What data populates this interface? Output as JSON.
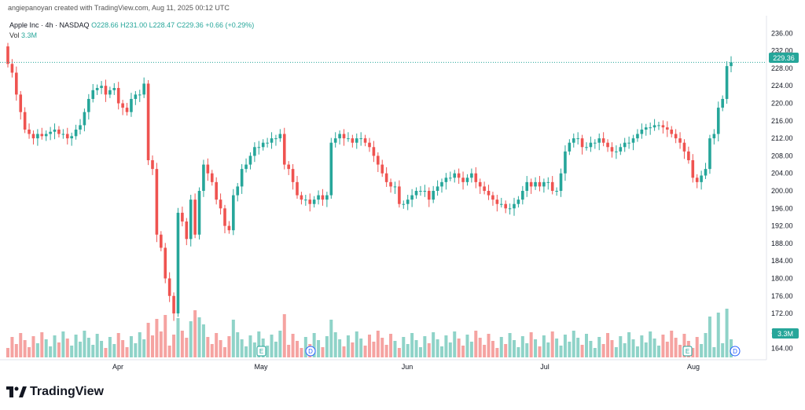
{
  "header": {
    "creator_line": "angiepanoyan created with TradingView.com, Aug 11, 2025 00:12 UTC"
  },
  "legend": {
    "symbol": "Apple Inc · 4h · NASDAQ",
    "open": "O228.66",
    "high": "H231.00",
    "low": "L228.47",
    "close": "C229.36",
    "change": "+0.66 (+0.29%)",
    "vol_label": "Vol",
    "vol_value": "3.3M"
  },
  "price_label": "229.36",
  "vol_badge": "3.3M",
  "logo_text": "TradingView",
  "colors": {
    "up": "#26a69a",
    "down": "#ef5350",
    "up_vol": "#8fd3c8",
    "down_vol": "#f5a3a1"
  },
  "chart_data": {
    "type": "candlestick",
    "symbol": "Apple Inc",
    "interval": "4h",
    "exchange": "NASDAQ",
    "y_ticks": [
      "236.00",
      "232.00",
      "228.00",
      "224.00",
      "220.00",
      "216.00",
      "212.00",
      "208.00",
      "204.00",
      "200.00",
      "196.00",
      "192.00",
      "188.00",
      "184.00",
      "180.00",
      "176.00",
      "172.00",
      "168.00",
      "164.00"
    ],
    "ylim": [
      162.5,
      237.5
    ],
    "x_ticks": [
      "Apr",
      "May",
      "Jun",
      "Jul",
      "Aug"
    ],
    "last_close": 229.36,
    "close_path": [
      [
        0,
        229
      ],
      [
        1,
        227
      ],
      [
        2,
        222
      ],
      [
        3,
        218
      ],
      [
        4,
        214
      ],
      [
        5,
        213
      ],
      [
        6,
        212
      ],
      [
        7,
        213
      ],
      [
        8,
        212.5
      ],
      [
        9,
        213
      ],
      [
        10,
        213.5
      ],
      [
        11,
        214
      ],
      [
        12,
        213
      ],
      [
        13,
        213
      ],
      [
        14,
        212
      ],
      [
        15,
        212.5
      ],
      [
        16,
        214
      ],
      [
        17,
        215
      ],
      [
        18,
        218
      ],
      [
        19,
        221
      ],
      [
        20,
        223
      ],
      [
        21,
        223.5
      ],
      [
        22,
        224
      ],
      [
        23,
        222
      ],
      [
        24,
        223
      ],
      [
        25,
        223.5
      ],
      [
        26,
        220
      ],
      [
        27,
        219
      ],
      [
        28,
        218
      ],
      [
        29,
        221
      ],
      [
        30,
        222
      ],
      [
        31,
        222
      ],
      [
        32,
        224.5
      ],
      [
        33,
        207
      ],
      [
        34,
        205
      ],
      [
        35,
        190
      ],
      [
        36,
        187
      ],
      [
        37,
        180
      ],
      [
        38,
        176
      ],
      [
        39,
        172
      ],
      [
        40,
        195
      ],
      [
        41,
        193
      ],
      [
        42,
        189
      ],
      [
        43,
        198
      ],
      [
        44,
        190
      ],
      [
        45,
        200
      ],
      [
        46,
        206
      ],
      [
        47,
        204
      ],
      [
        48,
        202
      ],
      [
        49,
        198
      ],
      [
        50,
        196
      ],
      [
        51,
        192
      ],
      [
        52,
        191
      ],
      [
        53,
        199
      ],
      [
        54,
        201
      ],
      [
        55,
        205
      ],
      [
        56,
        206
      ],
      [
        57,
        208
      ],
      [
        58,
        210
      ],
      [
        59,
        210
      ],
      [
        60,
        211
      ],
      [
        61,
        211
      ],
      [
        62,
        212
      ],
      [
        63,
        212
      ],
      [
        64,
        213
      ],
      [
        65,
        206
      ],
      [
        66,
        205
      ],
      [
        67,
        202
      ],
      [
        68,
        199
      ],
      [
        69,
        198
      ],
      [
        70,
        198
      ],
      [
        71,
        197
      ],
      [
        72,
        198
      ],
      [
        73,
        199
      ],
      [
        74,
        198
      ],
      [
        75,
        199
      ],
      [
        76,
        211
      ],
      [
        77,
        212
      ],
      [
        78,
        213
      ],
      [
        79,
        212
      ],
      [
        80,
        212
      ],
      [
        81,
        211
      ],
      [
        82,
        212
      ],
      [
        83,
        212
      ],
      [
        84,
        211
      ],
      [
        85,
        210
      ],
      [
        86,
        208
      ],
      [
        87,
        206
      ],
      [
        88,
        204
      ],
      [
        89,
        202
      ],
      [
        90,
        201
      ],
      [
        91,
        201
      ],
      [
        92,
        197
      ],
      [
        93,
        197
      ],
      [
        94,
        198
      ],
      [
        95,
        199
      ],
      [
        96,
        200
      ],
      [
        97,
        200
      ],
      [
        98,
        200
      ],
      [
        99,
        198
      ],
      [
        100,
        200
      ],
      [
        101,
        201
      ],
      [
        102,
        202
      ],
      [
        103,
        203
      ],
      [
        104,
        203
      ],
      [
        105,
        204
      ],
      [
        106,
        203
      ],
      [
        107,
        202
      ],
      [
        108,
        203
      ],
      [
        109,
        204
      ],
      [
        110,
        202
      ],
      [
        111,
        201
      ],
      [
        112,
        200
      ],
      [
        113,
        199
      ],
      [
        114,
        198
      ],
      [
        115,
        197
      ],
      [
        116,
        197
      ],
      [
        117,
        196
      ],
      [
        118,
        196
      ],
      [
        119,
        197
      ],
      [
        120,
        198
      ],
      [
        121,
        200
      ],
      [
        122,
        202
      ],
      [
        123,
        201
      ],
      [
        124,
        202
      ],
      [
        125,
        201
      ],
      [
        126,
        202
      ],
      [
        127,
        202
      ],
      [
        128,
        200
      ],
      [
        129,
        200
      ],
      [
        130,
        204
      ],
      [
        131,
        209
      ],
      [
        132,
        211
      ],
      [
        133,
        212
      ],
      [
        134,
        212
      ],
      [
        135,
        210
      ],
      [
        136,
        210
      ],
      [
        137,
        211
      ],
      [
        138,
        211
      ],
      [
        139,
        212
      ],
      [
        140,
        211
      ],
      [
        141,
        210
      ],
      [
        142,
        209
      ],
      [
        143,
        209
      ],
      [
        144,
        210
      ],
      [
        145,
        211
      ],
      [
        146,
        211
      ],
      [
        147,
        212
      ],
      [
        148,
        213
      ],
      [
        149,
        214
      ],
      [
        150,
        214.5
      ],
      [
        151,
        214.5
      ],
      [
        152,
        215
      ],
      [
        153,
        215
      ],
      [
        154,
        214.5
      ],
      [
        155,
        214
      ],
      [
        156,
        213
      ],
      [
        157,
        212
      ],
      [
        158,
        211
      ],
      [
        159,
        209
      ],
      [
        160,
        207
      ],
      [
        161,
        203
      ],
      [
        162,
        202
      ],
      [
        163,
        203.5
      ],
      [
        164,
        205
      ],
      [
        165,
        212
      ],
      [
        166,
        213
      ],
      [
        167,
        219
      ],
      [
        168,
        221
      ],
      [
        169,
        228.5
      ],
      [
        170,
        229.36
      ]
    ],
    "note": "Approximate close prices per 4h bar; the page renders candles and volume bars from this series."
  }
}
